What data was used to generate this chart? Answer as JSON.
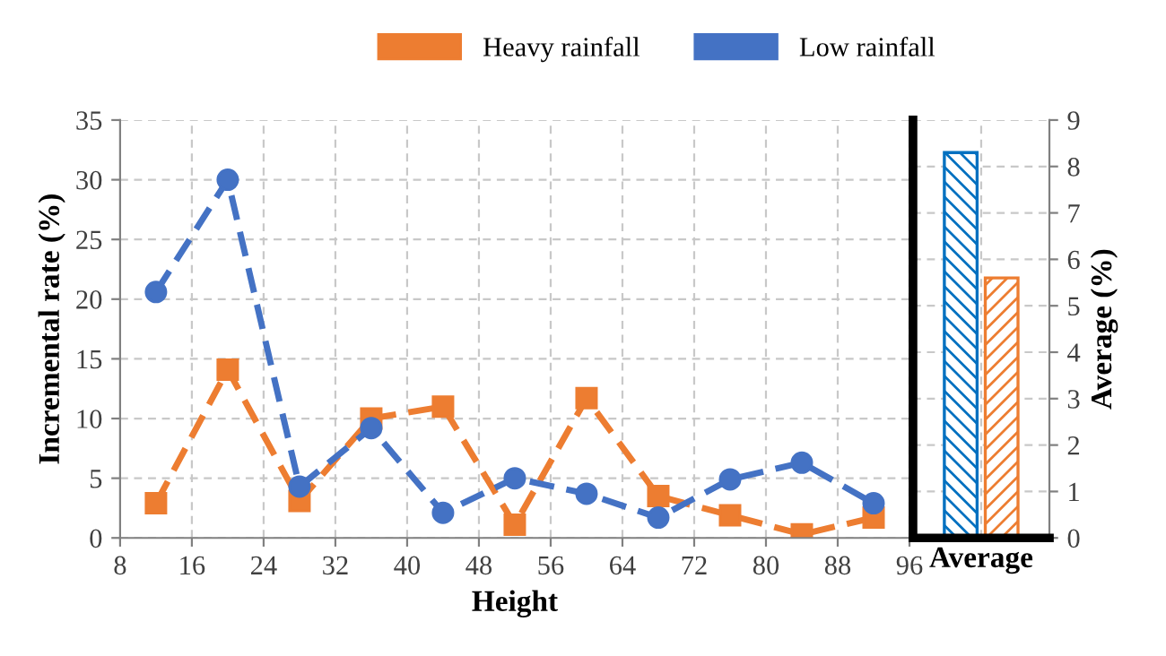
{
  "chart_data": [
    {
      "type": "line",
      "xlabel": "Height",
      "ylabel": "Incremental rate (%)",
      "x": [
        12,
        20,
        28,
        36,
        44,
        52,
        60,
        68,
        76,
        84,
        92
      ],
      "xlim": [
        8,
        96
      ],
      "xticks": [
        8,
        16,
        24,
        32,
        40,
        48,
        56,
        64,
        72,
        80,
        88,
        96
      ],
      "ylim": [
        0,
        35
      ],
      "yticks": [
        0,
        5,
        10,
        15,
        20,
        25,
        30,
        35
      ],
      "grid": true,
      "legend": "top",
      "line_style": "dashed",
      "series": [
        {
          "name": "Heavy rainfall",
          "color": "#ed7d31",
          "marker": "square",
          "values": [
            2.9,
            14.1,
            3.1,
            10,
            11,
            1.1,
            11.7,
            3.5,
            1.9,
            0.3,
            1.7
          ]
        },
        {
          "name": "Low rainfall",
          "color": "#4472c4",
          "marker": "circle",
          "values": [
            20.6,
            30,
            4.3,
            9.2,
            2.1,
            5,
            3.7,
            1.7,
            4.9,
            6.3,
            2.9
          ]
        }
      ]
    },
    {
      "type": "bar",
      "categories": [
        "Average"
      ],
      "ylabel": "Average (%)",
      "ylim": [
        0,
        9
      ],
      "yticks": [
        0,
        1,
        2,
        3,
        4,
        5,
        6,
        7,
        8,
        9
      ],
      "grid": true,
      "series": [
        {
          "color": "#0070c0",
          "values": [
            8.3
          ]
        },
        {
          "color": "#ed7d31",
          "values": [
            5.6
          ]
        }
      ]
    }
  ]
}
